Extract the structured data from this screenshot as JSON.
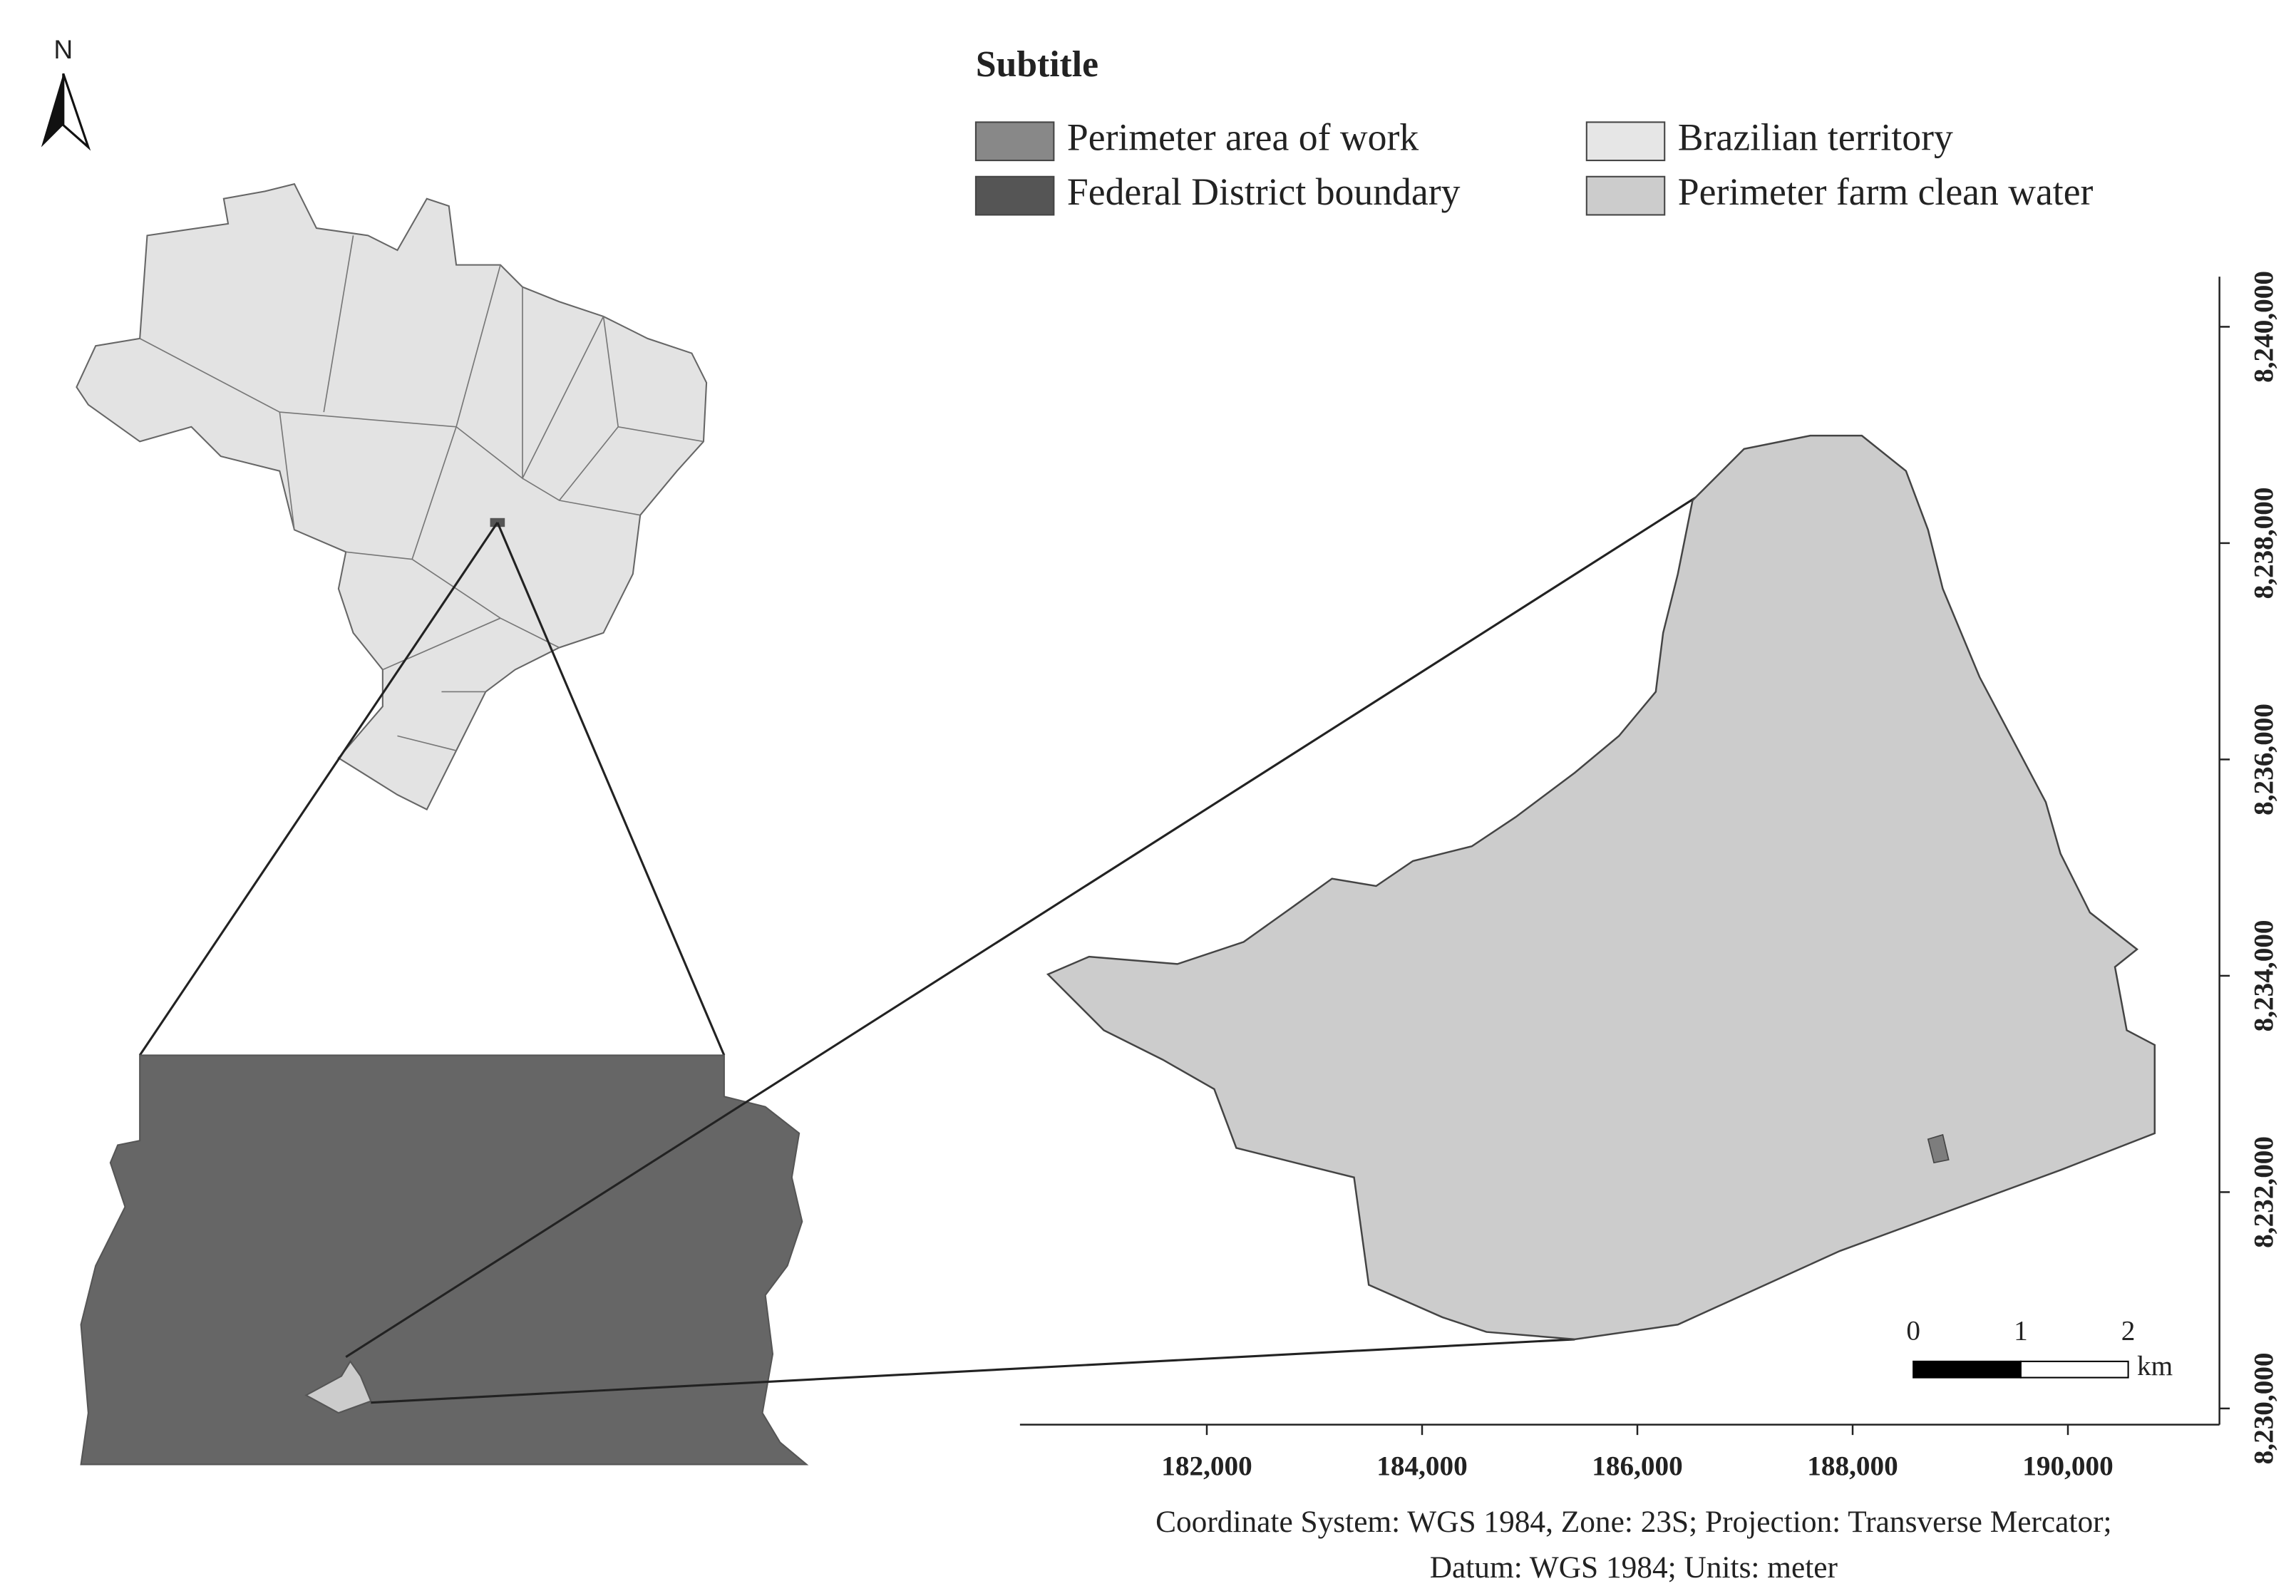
{
  "north_label": "N",
  "legend": {
    "title": "Subtitle",
    "items": [
      {
        "label": "Perimeter area of work",
        "color": "#888888"
      },
      {
        "label": "Federal District boundary",
        "color": "#555555"
      },
      {
        "label": "Brazilian territory",
        "color": "#e6e6e6"
      },
      {
        "label": "Perimeter farm clean water",
        "color": "#cccccc"
      }
    ]
  },
  "axes": {
    "xlim": [
      180264,
      191408
    ],
    "ylim": [
      8229850,
      8240463
    ],
    "xticks": [
      {
        "value": 182000,
        "label": "182,000"
      },
      {
        "value": 184000,
        "label": "184,000"
      },
      {
        "value": 186000,
        "label": "186,000"
      },
      {
        "value": 188000,
        "label": "188,000"
      },
      {
        "value": 190000,
        "label": "190,000"
      }
    ],
    "yticks": [
      {
        "value": 8230000,
        "label": "8,230,000"
      },
      {
        "value": 8232000,
        "label": "8,232,000"
      },
      {
        "value": 8234000,
        "label": "8,234,000"
      },
      {
        "value": 8236000,
        "label": "8,236,000"
      },
      {
        "value": 8238000,
        "label": "8,238,000"
      },
      {
        "value": 8240000,
        "label": "8,240,000"
      }
    ]
  },
  "scale_bar": {
    "labels": [
      "0",
      "1",
      "2"
    ],
    "unit": "km"
  },
  "footnote": [
    "Coordinate System: WGS 1984, Zone: 23S; Projection: Transverse Mercator;",
    "Datum: WGS 1984; Units: meter"
  ]
}
